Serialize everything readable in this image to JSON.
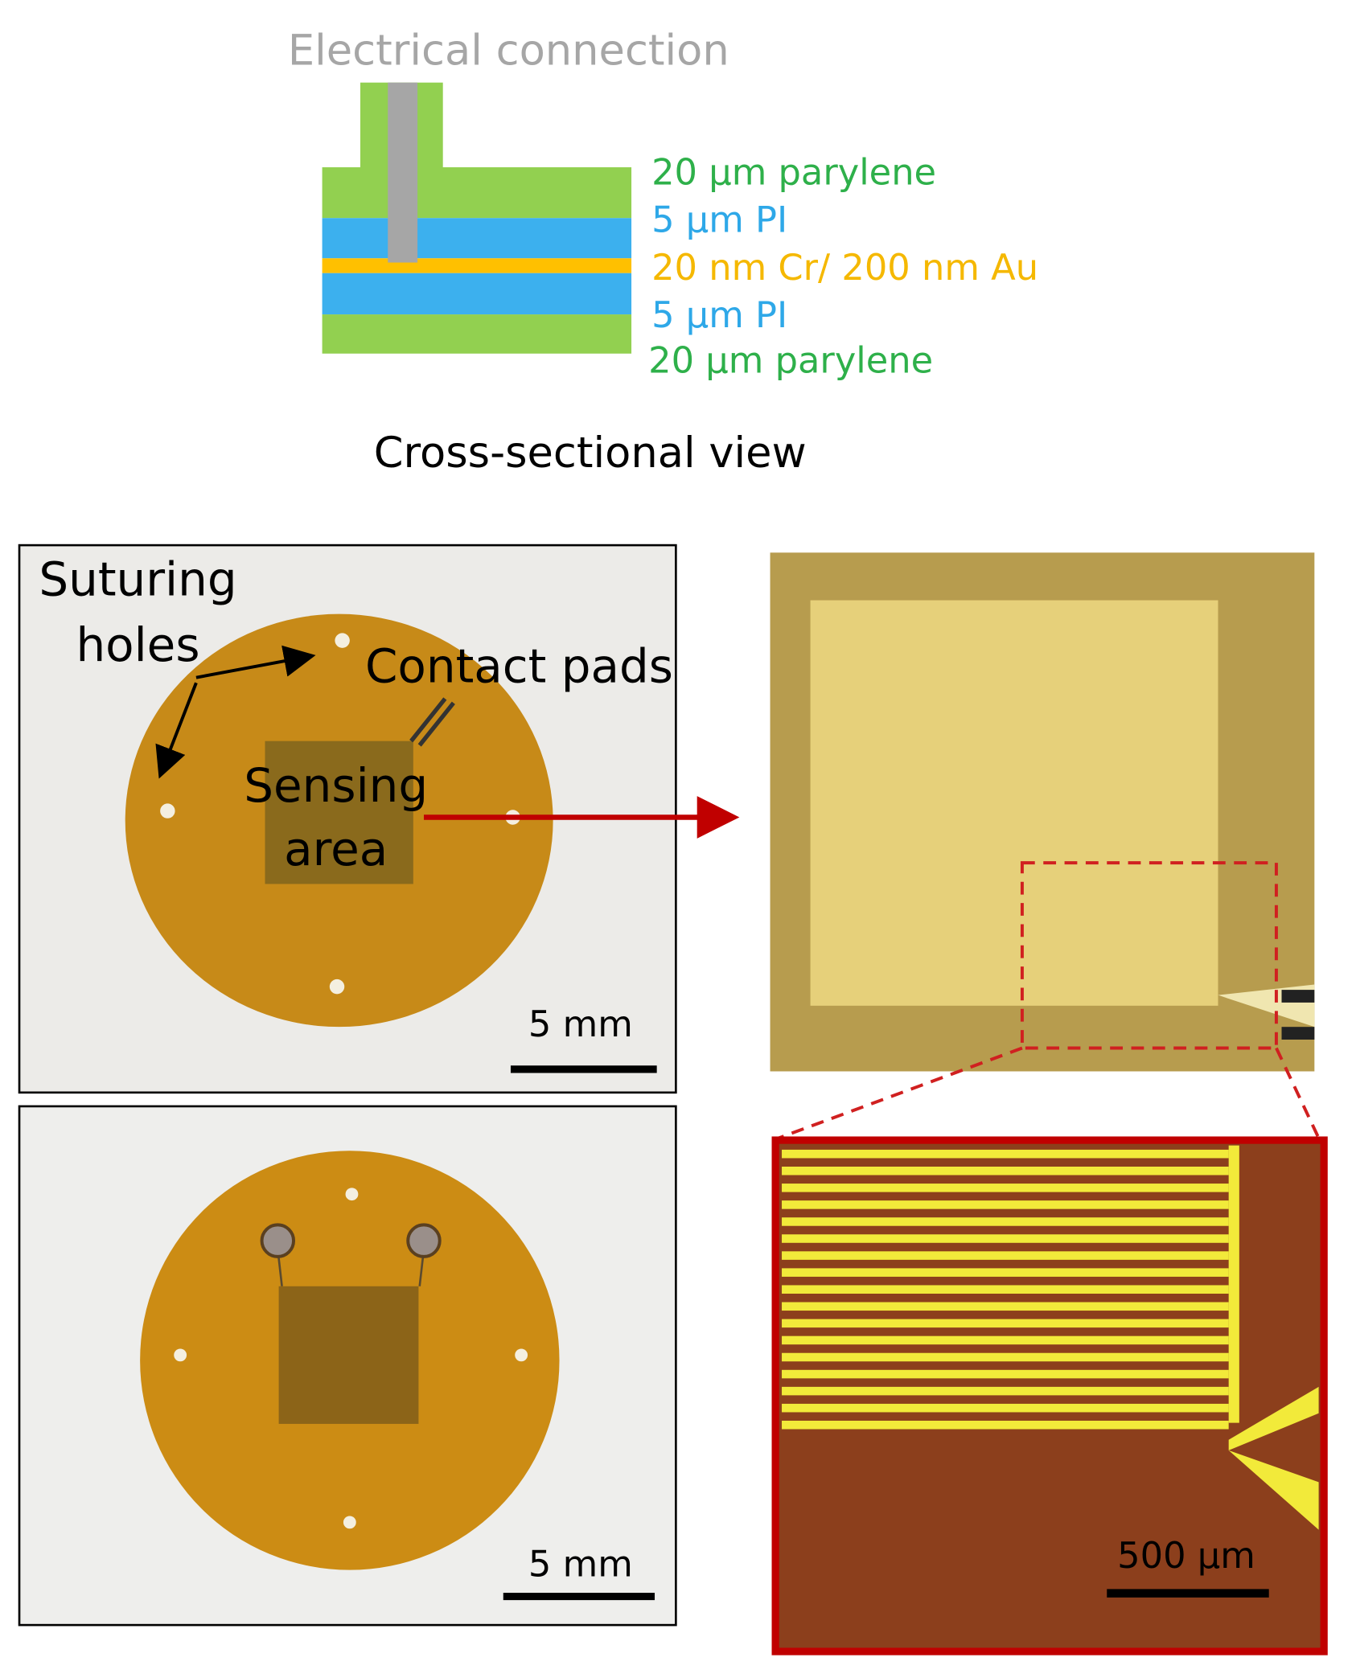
{
  "cross_section": {
    "connection_label": "Electrical connection",
    "layers": [
      "20 µm parylene",
      "5 µm PI",
      "20 nm Cr/ 200 nm Au",
      "5 µm PI",
      "20 µm parylene"
    ],
    "caption": "Cross-sectional view"
  },
  "photo_top": {
    "labels": [
      "Suturing",
      "holes",
      "Contact pads",
      "Sensing",
      "area"
    ],
    "scale_bar": "5 mm"
  },
  "photo_bottom": {
    "scale_bar": "5 mm"
  },
  "zoom": {
    "scale_bar": "500 µm"
  }
}
